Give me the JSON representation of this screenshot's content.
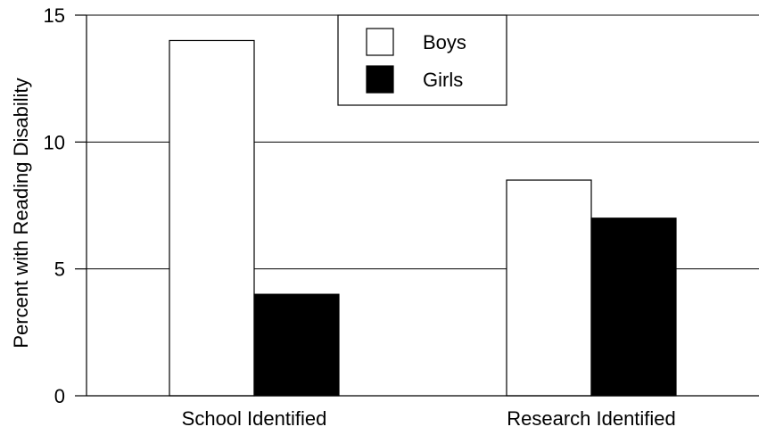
{
  "chart_data": {
    "type": "bar",
    "categories": [
      "School Identified",
      "Research Identified"
    ],
    "series": [
      {
        "name": "Boys",
        "values": [
          14,
          8.5
        ],
        "color": "#ffffff"
      },
      {
        "name": "Girls",
        "values": [
          4,
          7
        ],
        "color": "#000000"
      }
    ],
    "title": "",
    "xlabel": "",
    "ylabel": "Percent with Reading Disability",
    "ylim": [
      0,
      15
    ],
    "yticks": [
      "0",
      "5",
      "10",
      "15"
    ],
    "grid": true,
    "legend_position": "top-center"
  }
}
